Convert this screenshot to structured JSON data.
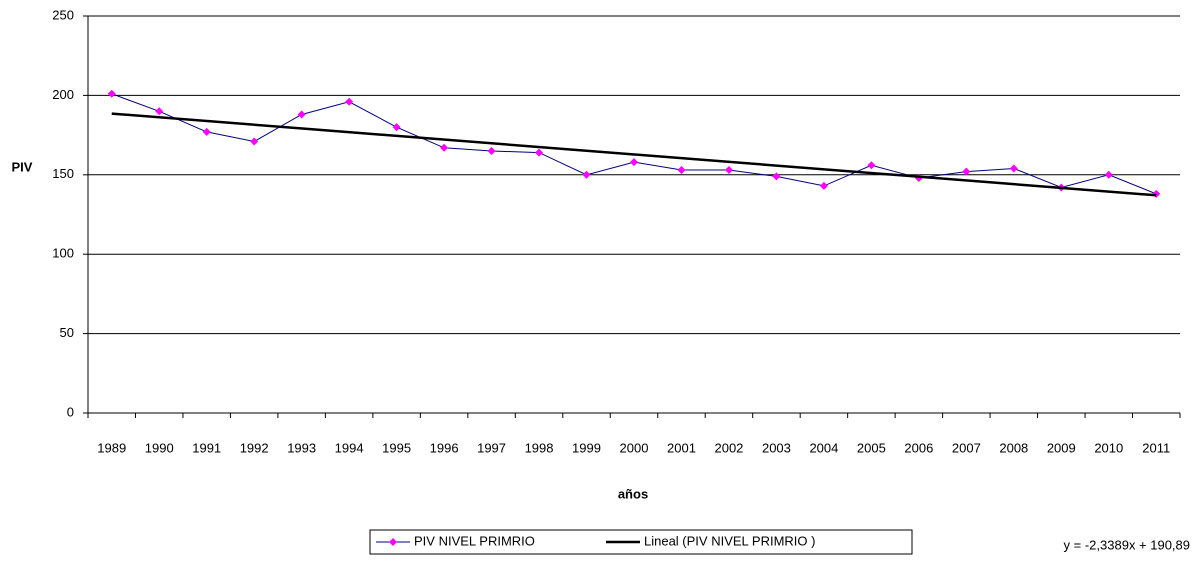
{
  "chart_data": {
    "type": "line",
    "x_label": "años",
    "y_label": "PIV",
    "categories": [
      "1989",
      "1990",
      "1991",
      "1992",
      "1993",
      "1994",
      "1995",
      "1996",
      "1997",
      "1998",
      "1999",
      "2000",
      "2001",
      "2002",
      "2003",
      "2004",
      "2005",
      "2006",
      "2007",
      "2008",
      "2009",
      "2010",
      "2011"
    ],
    "series": [
      {
        "name": "PIV NIVEL PRIMRIO",
        "color": "#000080",
        "marker_color": "#ff00ff",
        "values": [
          201,
          190,
          177,
          171,
          188,
          196,
          180,
          167,
          165,
          164,
          150,
          158,
          153,
          153,
          149,
          143,
          156,
          148,
          152,
          154,
          142,
          150,
          138
        ]
      }
    ],
    "trendline": {
      "name": "Lineal (PIV NIVEL PRIMRIO )",
      "color": "#000000",
      "slope": -2.3389,
      "intercept": 190.89,
      "label": "y = -2,3389x + 190,89"
    },
    "ylim": [
      0,
      250
    ],
    "yticks": [
      0,
      50,
      100,
      150,
      200,
      250
    ],
    "grid": true
  }
}
